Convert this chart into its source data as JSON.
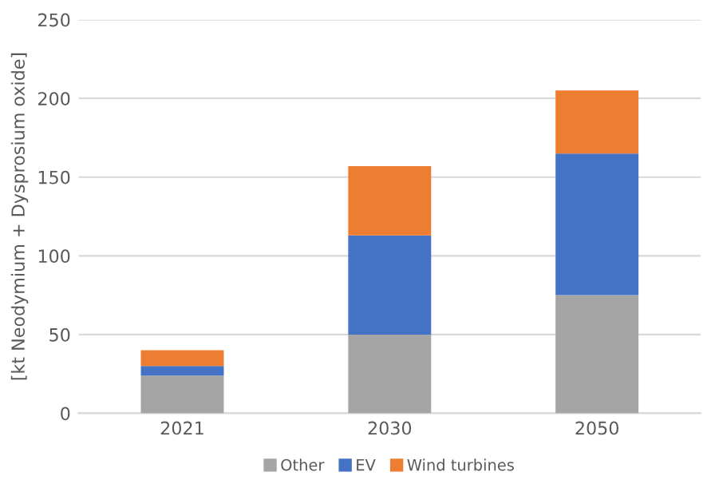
{
  "chart_data": {
    "type": "bar",
    "stacked": true,
    "ylabel": "[kt Neodymium + Dysprosium oxide]",
    "categories": [
      "2021",
      "2030",
      "2050"
    ],
    "series": [
      {
        "name": "Other",
        "color": "#a5a5a5",
        "values": [
          24,
          50,
          75
        ]
      },
      {
        "name": "EV",
        "color": "#4472c4",
        "values": [
          6,
          63,
          90
        ]
      },
      {
        "name": "Wind turbines",
        "color": "#ed7d31",
        "values": [
          10,
          44,
          40
        ]
      }
    ],
    "ylim": [
      0,
      250
    ],
    "yticks": [
      0,
      50,
      100,
      150,
      200,
      250
    ],
    "grid": "y",
    "legend": "bottom"
  }
}
